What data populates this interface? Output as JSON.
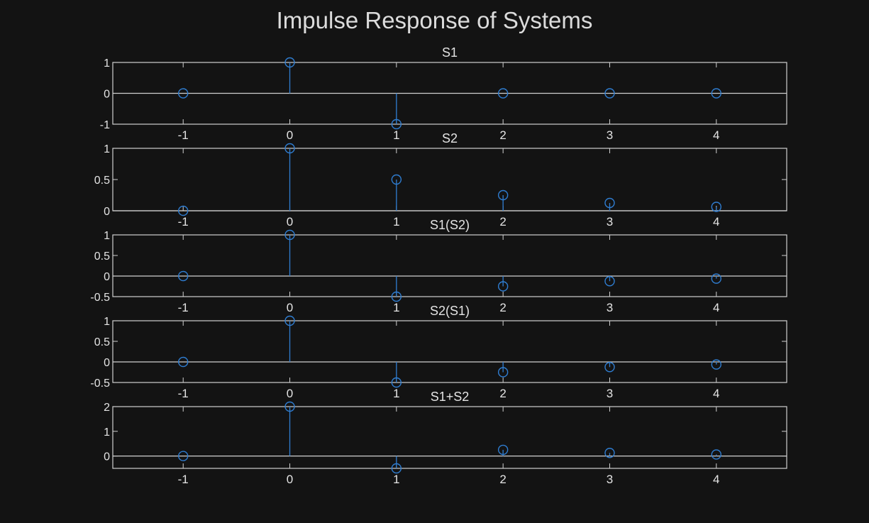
{
  "figure": {
    "title": "Impulse Response of Systems",
    "colors": {
      "background": "#131313",
      "axes": "#d0d0d0",
      "stem": "#2f7dd1",
      "text": "#e4e4e4"
    }
  },
  "chart_data": [
    {
      "type": "stem",
      "title": "S1",
      "x": [
        -1,
        0,
        1,
        2,
        3,
        4
      ],
      "y": [
        0,
        1,
        -1,
        0,
        0,
        0
      ],
      "xlim": [
        -1.66,
        4.66
      ],
      "ylim": [
        -1,
        1
      ],
      "xticks": [
        "-1",
        "0",
        "1",
        "2",
        "3",
        "4"
      ],
      "yticks": [
        {
          "v": 1,
          "label": "1"
        },
        {
          "v": 0,
          "label": "0"
        },
        {
          "v": -1,
          "label": "-1"
        }
      ],
      "grid": false
    },
    {
      "type": "stem",
      "title": "S2",
      "x": [
        -1,
        0,
        1,
        2,
        3,
        4
      ],
      "y": [
        0,
        1,
        0.5,
        0.25,
        0.125,
        0.0625
      ],
      "xlim": [
        -1.66,
        4.66
      ],
      "ylim": [
        0,
        1
      ],
      "xticks": [
        "-1",
        "0",
        "1",
        "2",
        "3",
        "4"
      ],
      "yticks": [
        {
          "v": 1,
          "label": "1"
        },
        {
          "v": 0.5,
          "label": "0.5"
        },
        {
          "v": 0,
          "label": "0"
        }
      ],
      "grid": false
    },
    {
      "type": "stem",
      "title": "S1(S2)",
      "x": [
        -1,
        0,
        1,
        2,
        3,
        4
      ],
      "y": [
        0,
        1,
        -0.5,
        -0.25,
        -0.125,
        -0.0625
      ],
      "xlim": [
        -1.66,
        4.66
      ],
      "ylim": [
        -0.5,
        1
      ],
      "xticks": [
        "-1",
        "0",
        "1",
        "2",
        "3",
        "4"
      ],
      "yticks": [
        {
          "v": 1,
          "label": "1"
        },
        {
          "v": 0.5,
          "label": "0.5"
        },
        {
          "v": 0,
          "label": "0"
        },
        {
          "v": -0.5,
          "label": "-0.5"
        }
      ],
      "grid": false
    },
    {
      "type": "stem",
      "title": "S2(S1)",
      "x": [
        -1,
        0,
        1,
        2,
        3,
        4
      ],
      "y": [
        0,
        1,
        -0.5,
        -0.25,
        -0.125,
        -0.0625
      ],
      "xlim": [
        -1.66,
        4.66
      ],
      "ylim": [
        -0.5,
        1
      ],
      "xticks": [
        "-1",
        "0",
        "1",
        "2",
        "3",
        "4"
      ],
      "yticks": [
        {
          "v": 1,
          "label": "1"
        },
        {
          "v": 0.5,
          "label": "0.5"
        },
        {
          "v": 0,
          "label": "0"
        },
        {
          "v": -0.5,
          "label": "-0.5"
        }
      ],
      "grid": false
    },
    {
      "type": "stem",
      "title": "S1+S2",
      "x": [
        -1,
        0,
        1,
        2,
        3,
        4
      ],
      "y": [
        0,
        2,
        -0.5,
        0.25,
        0.125,
        0.0625
      ],
      "xlim": [
        -1.66,
        4.66
      ],
      "ylim": [
        -0.5,
        2
      ],
      "xticks": [
        "-1",
        "0",
        "1",
        "2",
        "3",
        "4"
      ],
      "yticks": [
        {
          "v": 2,
          "label": "2"
        },
        {
          "v": 1,
          "label": "1"
        },
        {
          "v": 0,
          "label": "0"
        }
      ],
      "grid": false
    }
  ]
}
